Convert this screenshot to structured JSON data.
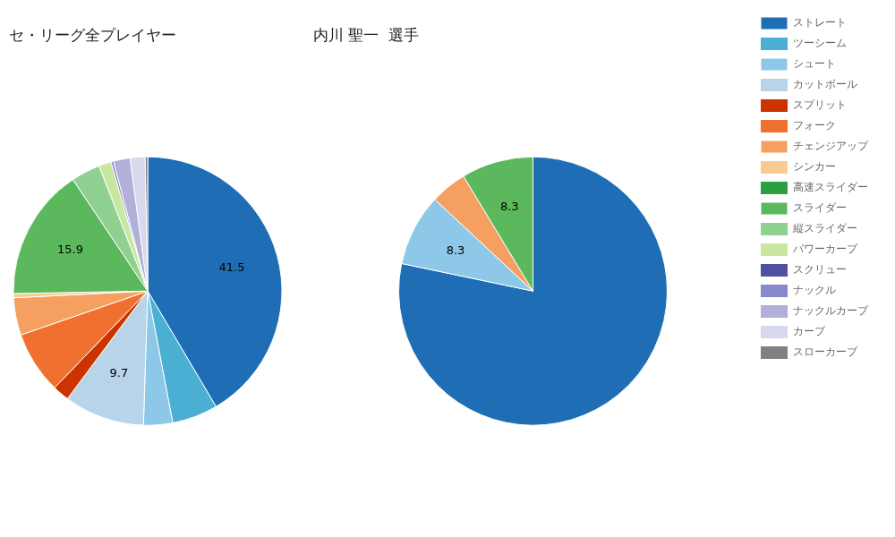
{
  "chart_data": [
    {
      "type": "pie",
      "title": "セ・リーグ全プレイヤー",
      "categories": [
        "ストレート",
        "ツーシーム",
        "シュート",
        "カットボール",
        "スプリット",
        "フォーク",
        "チェンジアップ",
        "シンカー",
        "高速スライダー",
        "スライダー",
        "縦スライダー",
        "パワーカーブ",
        "スクリュー",
        "ナックル",
        "ナックルカーブ",
        "カーブ",
        "スローカーブ"
      ],
      "values": [
        41.5,
        5.5,
        3.5,
        9.7,
        2.0,
        7.5,
        4.5,
        0.5,
        0.0,
        15.9,
        3.5,
        1.5,
        0.0,
        0.3,
        2.0,
        1.8,
        0.3
      ],
      "colors": [
        "#1f6eb5",
        "#4bafd4",
        "#8dc8e8",
        "#b8d4e8",
        "#cc3300",
        "#f07030",
        "#f5a060",
        "#f8cc90",
        "#2ca040",
        "#5cb85c",
        "#90d090",
        "#c8e8a0",
        "#5050a0",
        "#8888cc",
        "#b0b0d8",
        "#d8d8ee",
        "#808080"
      ],
      "data_labels": true,
      "value_labels": [
        "41.5",
        null,
        null,
        "9.7",
        null,
        null,
        null,
        null,
        null,
        "15.9",
        null,
        null,
        null,
        null,
        null,
        null,
        null
      ]
    },
    {
      "type": "pie",
      "title": "内川 聖一  選手",
      "categories": [
        "ストレート",
        "ツーシーム",
        "シュート",
        "カットボール",
        "スプリット",
        "フォーク",
        "チェンジアップ",
        "シンカー",
        "高速スライダー",
        "スライダー",
        "縦スライダー",
        "パワーカーブ",
        "スクリュー",
        "ナックル",
        "ナックルカーブ",
        "カーブ",
        "スローカーブ"
      ],
      "values": [
        75.0,
        0.0,
        8.3,
        0.0,
        0.0,
        0.0,
        4.2,
        0.0,
        0.0,
        8.3,
        0.0,
        0.0,
        0.0,
        0.0,
        0.0,
        0.0,
        0.0
      ],
      "colors": [
        "#1f6eb5",
        "#4bafd4",
        "#8dc8e8",
        "#b8d4e8",
        "#cc3300",
        "#f07030",
        "#f5a060",
        "#f8cc90",
        "#2ca040",
        "#5cb85c",
        "#90d090",
        "#c8e8a0",
        "#5050a0",
        "#8888cc",
        "#b0b0d8",
        "#d8d8ee",
        "#808080"
      ],
      "data_labels": true,
      "value_labels": [
        null,
        null,
        "8.3",
        null,
        null,
        null,
        null,
        null,
        null,
        "8.3",
        null,
        null,
        null,
        null,
        null,
        null,
        null
      ],
      "legend": "upper right"
    }
  ]
}
